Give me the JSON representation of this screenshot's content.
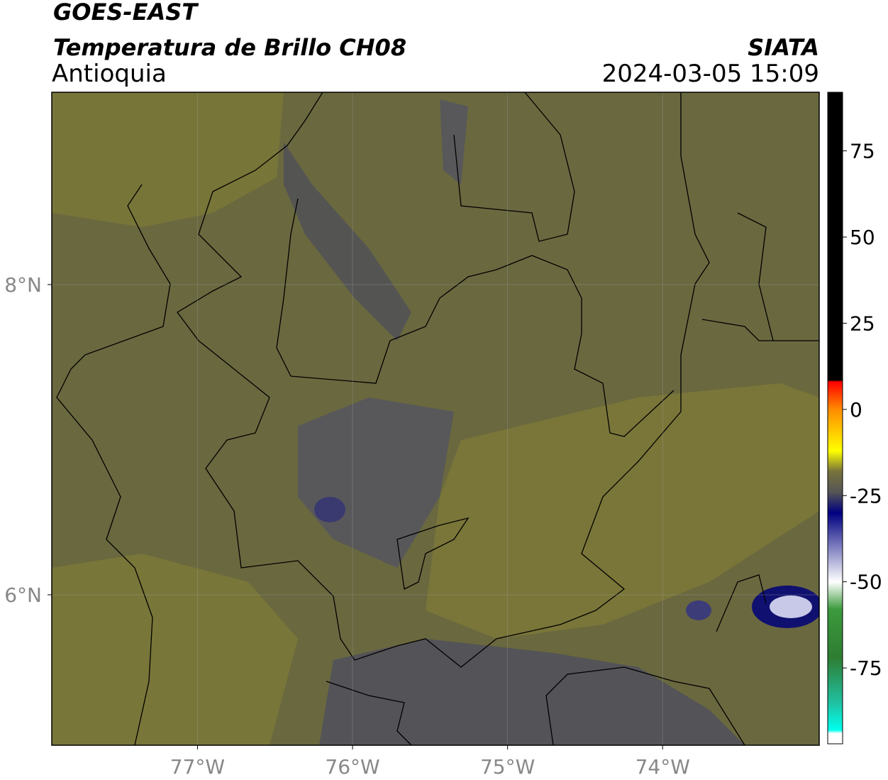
{
  "chart_data": {
    "type": "map",
    "title": "GOES-EAST",
    "subtitle": "Temperatura de Brillo CH08",
    "region": "Antioquia",
    "source": "SIATA",
    "datetime": "2024-03-05 15:09",
    "xlim": [
      -77.94,
      -72.99
    ],
    "ylim": [
      5.03,
      9.24
    ],
    "xticks": [
      {
        "value": -77,
        "label": "77°W"
      },
      {
        "value": -76,
        "label": "76°W"
      },
      {
        "value": -75,
        "label": "75°W"
      },
      {
        "value": -74,
        "label": "74°W"
      }
    ],
    "yticks": [
      {
        "value": 8,
        "label": "8°N"
      },
      {
        "value": 6,
        "label": "6°N"
      }
    ],
    "grid": true,
    "clim": [
      -97,
      92
    ],
    "cticks": [
      75,
      50,
      25,
      0,
      -25,
      -50,
      -75
    ],
    "colormap": [
      {
        "value": 92,
        "color": "#000000"
      },
      {
        "value": 8.5,
        "color": "#000000"
      },
      {
        "value": 8,
        "color": "#ff0000"
      },
      {
        "value": 0,
        "color": "#ff8c00"
      },
      {
        "value": -12,
        "color": "#ffff00"
      },
      {
        "value": -18,
        "color": "#77733c"
      },
      {
        "value": -24,
        "color": "#555555"
      },
      {
        "value": -30,
        "color": "#000080"
      },
      {
        "value": -50,
        "color": "#ffffff"
      },
      {
        "value": -58,
        "color": "#3c9a3c"
      },
      {
        "value": -72,
        "color": "#2e7d32"
      },
      {
        "value": -85,
        "color": "#20c0a0"
      },
      {
        "value": -93,
        "color": "#00ffee"
      },
      {
        "value": -94,
        "color": "#ffffff"
      },
      {
        "value": -97,
        "color": "#ffffff"
      }
    ]
  }
}
